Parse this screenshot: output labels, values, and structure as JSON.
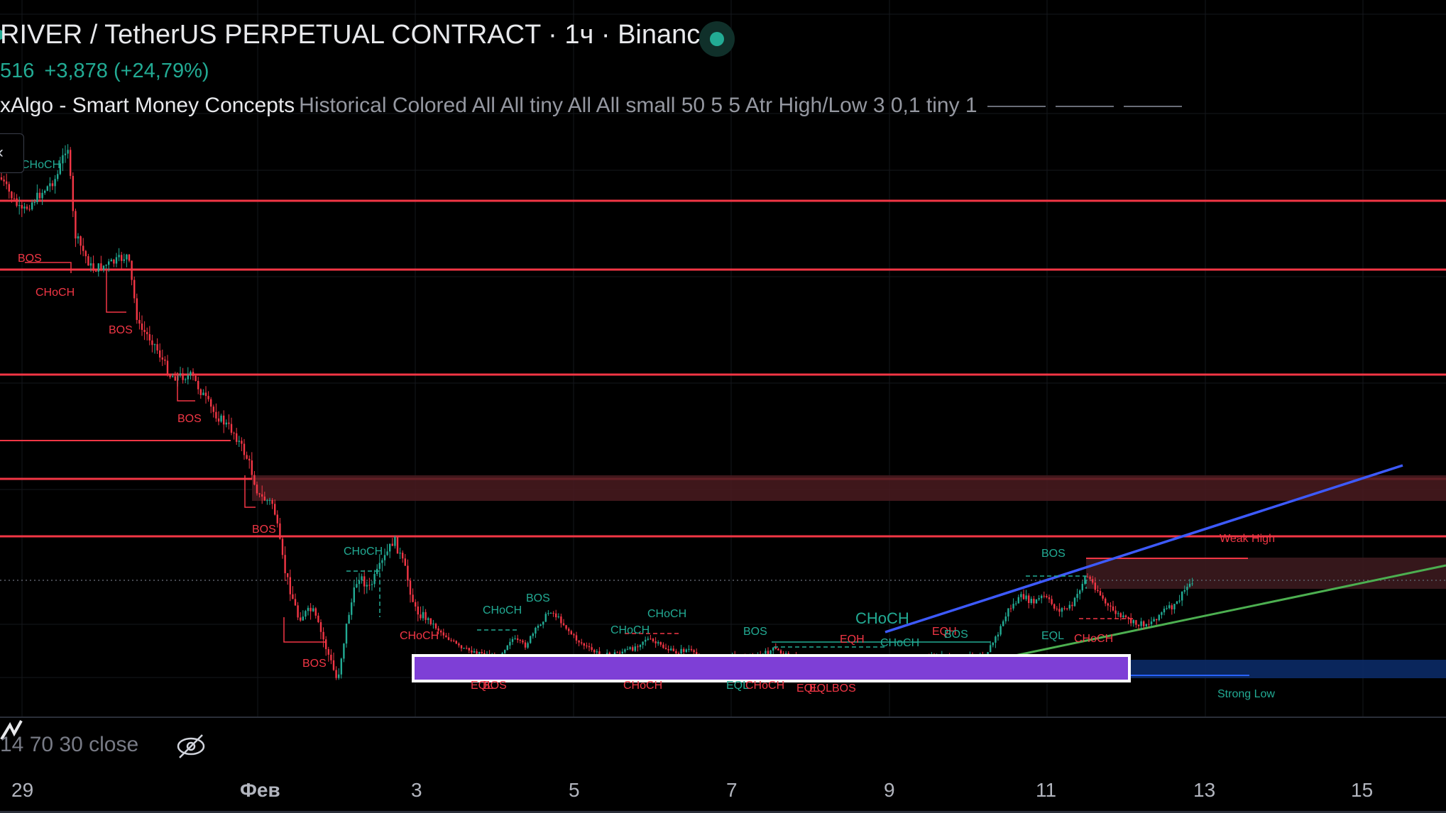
{
  "header": {
    "title": "RIVER / TetherUS PERPETUAL CONTRACT · 1ч · Binance",
    "price": "516",
    "change": "+3,878 (+24,79%)",
    "indicator_name": "xAlgo - Smart Money Concepts",
    "indicator_params": "Historical Colored All All tiny All All small 50 5 5 Atr High/Low 3 0,1 tiny 1"
  },
  "sub_pane": {
    "legend": "14 70 30 close"
  },
  "x_axis": {
    "ticks": [
      "29",
      "Фев",
      "3",
      "5",
      "7",
      "9",
      "11",
      "13",
      "15"
    ]
  },
  "annotations": {
    "choch": "CHoCH",
    "bos": "BOS",
    "eqh": "EQH",
    "eql": "EQL",
    "weak_high": "Weak High",
    "strong_low": "Strong Low"
  },
  "colors": {
    "background": "#000000",
    "bull": "#22ab94",
    "bear": "#f23645",
    "resistance": "#f23645",
    "trendline_upper": "#3d5afe",
    "trendline_lower": "#4caf50",
    "demand_zone": "#7e3fd6",
    "status_live": "#22ab94"
  },
  "icons": {
    "collapse": "chevron-left-icon",
    "visibility": "eye-off-icon",
    "pane": "pane-icon"
  }
}
